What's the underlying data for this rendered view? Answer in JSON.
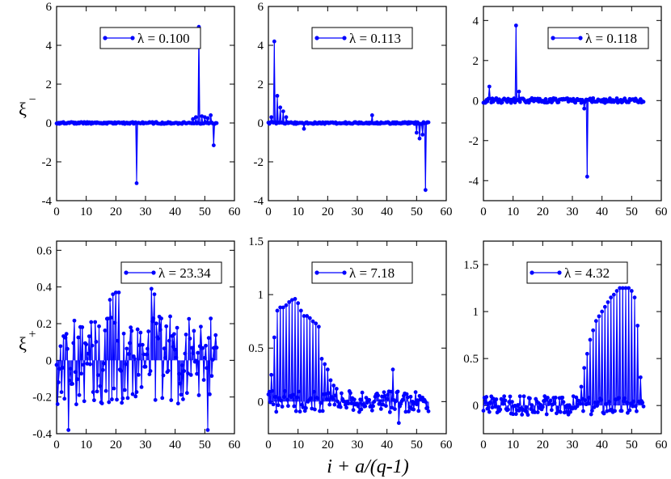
{
  "figure": {
    "xlabel": "i + a/(q-1)",
    "ylabel_top": "ξ",
    "ylabel_top_sup": "−",
    "ylabel_bottom": "ξ",
    "ylabel_bottom_sup": "+",
    "series_color": "#0000ff"
  },
  "chart_data": [
    {
      "type": "scatter",
      "style": "stem",
      "legend": "λ = 0.100",
      "legend_position": "top-center",
      "xlim": [
        0,
        60
      ],
      "ylim": [
        -4,
        6
      ],
      "xticks": [
        0,
        10,
        20,
        30,
        40,
        50,
        60
      ],
      "yticks": [
        -4,
        -2,
        0,
        2,
        4,
        6
      ],
      "n_points": 54,
      "baseline_noise": 0.05,
      "spikes": [
        [
          27,
          -3.1
        ],
        [
          48,
          4.95
        ],
        [
          47,
          0.3
        ],
        [
          49,
          0.35
        ],
        [
          50,
          0.3
        ],
        [
          53,
          -1.15
        ],
        [
          52,
          0.4
        ],
        [
          46,
          0.2
        ],
        [
          51,
          0.25
        ]
      ]
    },
    {
      "type": "scatter",
      "style": "stem",
      "legend": "λ = 0.113",
      "legend_position": "top-center",
      "xlim": [
        0,
        60
      ],
      "ylim": [
        -4,
        6
      ],
      "xticks": [
        0,
        10,
        20,
        30,
        40,
        50,
        60
      ],
      "yticks": [
        -4,
        -2,
        0,
        2,
        4,
        6
      ],
      "n_points": 54,
      "baseline_noise": 0.05,
      "spikes": [
        [
          2,
          4.2
        ],
        [
          3,
          1.4
        ],
        [
          4,
          0.8
        ],
        [
          5,
          0.6
        ],
        [
          1,
          0.3
        ],
        [
          6,
          0.3
        ],
        [
          35,
          0.4
        ],
        [
          50,
          -0.5
        ],
        [
          51,
          -0.8
        ],
        [
          52,
          -0.6
        ],
        [
          53,
          -3.45
        ],
        [
          12,
          -0.3
        ]
      ]
    },
    {
      "type": "scatter",
      "style": "stem",
      "legend": "λ = 0.118",
      "legend_position": "top-right",
      "xlim": [
        0,
        60
      ],
      "ylim": [
        -5,
        4.7
      ],
      "xticks": [
        0,
        10,
        20,
        30,
        40,
        50,
        60
      ],
      "yticks": [
        -4,
        -2,
        0,
        2,
        4
      ],
      "n_points": 54,
      "baseline_noise": 0.12,
      "spikes": [
        [
          11,
          3.75
        ],
        [
          2,
          0.7
        ],
        [
          12,
          0.45
        ],
        [
          35,
          -3.8
        ],
        [
          34,
          -0.4
        ]
      ]
    },
    {
      "type": "scatter",
      "style": "stem",
      "legend": "λ = 23.34",
      "legend_position": "top-right",
      "xlim": [
        0,
        60
      ],
      "ylim": [
        -0.4,
        0.65
      ],
      "xticks": [
        0,
        10,
        20,
        30,
        40,
        50,
        60
      ],
      "yticks": [
        -0.4,
        -0.2,
        0,
        0.2,
        0.4,
        0.6
      ],
      "n_points": 54,
      "baseline_noise": 0.24,
      "spikes": [
        [
          19,
          0.36
        ],
        [
          20,
          0.37
        ],
        [
          21,
          0.37
        ],
        [
          32,
          0.39
        ],
        [
          33,
          0.36
        ],
        [
          18,
          0.33
        ],
        [
          4,
          -0.38
        ],
        [
          51,
          -0.38
        ]
      ]
    },
    {
      "type": "scatter",
      "style": "stem",
      "legend": "λ = 7.18",
      "legend_position": "top-center",
      "xlim": [
        0,
        60
      ],
      "ylim": [
        -0.3,
        1.5
      ],
      "xticks": [
        0,
        10,
        20,
        30,
        40,
        50,
        60
      ],
      "yticks": [
        0,
        0.5,
        1,
        1.5
      ],
      "n_points": 54,
      "baseline_noise": 0.1,
      "spikes": [
        [
          1,
          0.25
        ],
        [
          2,
          0.6
        ],
        [
          3,
          0.85
        ],
        [
          4,
          0.88
        ],
        [
          5,
          0.88
        ],
        [
          6,
          0.9
        ],
        [
          7,
          0.93
        ],
        [
          8,
          0.95
        ],
        [
          9,
          0.96
        ],
        [
          10,
          0.92
        ],
        [
          11,
          0.85
        ],
        [
          12,
          0.8
        ],
        [
          13,
          0.8
        ],
        [
          14,
          0.78
        ],
        [
          15,
          0.75
        ],
        [
          16,
          0.73
        ],
        [
          17,
          0.7
        ],
        [
          18,
          0.4
        ],
        [
          19,
          0.35
        ],
        [
          20,
          0.3
        ],
        [
          21,
          0.2
        ],
        [
          22,
          0.15
        ],
        [
          23,
          0.12
        ],
        [
          42,
          0.3
        ],
        [
          44,
          -0.2
        ]
      ]
    },
    {
      "type": "scatter",
      "style": "stem",
      "legend": "λ = 4.32",
      "legend_position": "top-center",
      "xlim": [
        0,
        60
      ],
      "ylim": [
        -0.3,
        1.75
      ],
      "xticks": [
        0,
        10,
        20,
        30,
        40,
        50,
        60
      ],
      "yticks": [
        0,
        0.5,
        1,
        1.5
      ],
      "n_points": 54,
      "baseline_noise": 0.1,
      "spikes": [
        [
          33,
          0.2
        ],
        [
          34,
          0.4
        ],
        [
          35,
          0.55
        ],
        [
          36,
          0.7
        ],
        [
          37,
          0.8
        ],
        [
          38,
          0.9
        ],
        [
          39,
          0.95
        ],
        [
          40,
          1.0
        ],
        [
          41,
          1.05
        ],
        [
          42,
          1.1
        ],
        [
          43,
          1.15
        ],
        [
          44,
          1.18
        ],
        [
          45,
          1.22
        ],
        [
          46,
          1.25
        ],
        [
          47,
          1.25
        ],
        [
          48,
          1.25
        ],
        [
          49,
          1.25
        ],
        [
          50,
          1.22
        ],
        [
          51,
          1.15
        ],
        [
          52,
          0.85
        ],
        [
          53,
          0.3
        ]
      ]
    }
  ]
}
